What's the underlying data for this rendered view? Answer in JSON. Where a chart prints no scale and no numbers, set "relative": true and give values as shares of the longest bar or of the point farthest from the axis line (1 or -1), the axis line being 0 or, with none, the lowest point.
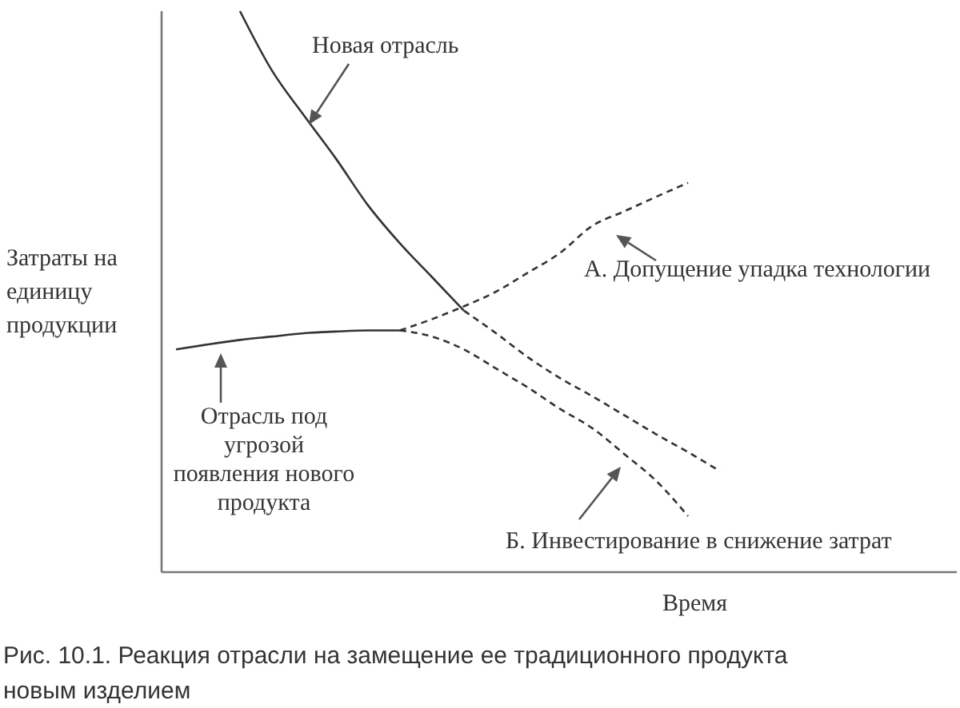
{
  "chart_data": {
    "type": "line",
    "title": "Рис. 10.1. Реакция отрасли на замещение ее традиционного продукта новым изделием",
    "xlabel": "Время",
    "ylabel": "Затраты на единицу продукции",
    "relative": true,
    "categories": [
      null,
      null,
      null,
      null,
      null,
      null,
      null,
      null,
      null,
      null,
      null,
      null,
      null,
      null,
      null,
      null,
      null,
      null,
      null,
      null,
      null,
      null,
      null,
      null,
      null
    ],
    "series": [
      {
        "color": "#333333",
        "line_style": "solid",
        "values": [
          null,
          null,
          1,
          0.894,
          0.814,
          0.737,
          0.654,
          0.586,
          0.526,
          0.466,
          null,
          null,
          null,
          null,
          null,
          null,
          null,
          null,
          null,
          null,
          null,
          null,
          null,
          null,
          null
        ]
      },
      {
        "color": "#333333",
        "line_style": "dashed",
        "values": [
          null,
          null,
          null,
          null,
          null,
          null,
          null,
          null,
          null,
          0.466,
          0.426,
          0.383,
          0.346,
          0.314,
          0.28,
          0.246,
          0.214,
          0.18,
          null,
          null,
          null,
          null,
          null,
          null,
          null
        ]
      },
      {
        "color": "#333333",
        "line_style": "solid",
        "values": [
          0.397,
          0.406,
          0.414,
          0.42,
          0.426,
          0.429,
          0.431,
          0.431,
          null,
          null,
          null,
          null,
          null,
          null,
          null,
          null,
          null,
          null,
          null,
          null,
          null,
          null,
          null,
          null,
          null
        ]
      },
      {
        "color": "#333333",
        "line_style": "dashed",
        "values": [
          null,
          null,
          null,
          null,
          null,
          null,
          null,
          0.431,
          0.451,
          0.474,
          0.5,
          0.534,
          0.569,
          0.617,
          0.643,
          0.669,
          0.694,
          null,
          null,
          null,
          null,
          null,
          null,
          null,
          null
        ]
      },
      {
        "color": "#333333",
        "line_style": "dashed",
        "values": [
          null,
          null,
          null,
          null,
          null,
          null,
          null,
          0.431,
          0.42,
          0.397,
          0.363,
          0.329,
          0.291,
          0.257,
          0.211,
          0.163,
          0.1,
          null,
          null,
          null,
          null,
          null,
          null,
          null,
          null
        ]
      }
    ],
    "annotations": [
      "Новая отрасль",
      "А. Допущение упадка технологии",
      "Отрасль под угрозой появления нового продукта",
      "Б. Инвестирование в снижение затрат"
    ]
  }
}
